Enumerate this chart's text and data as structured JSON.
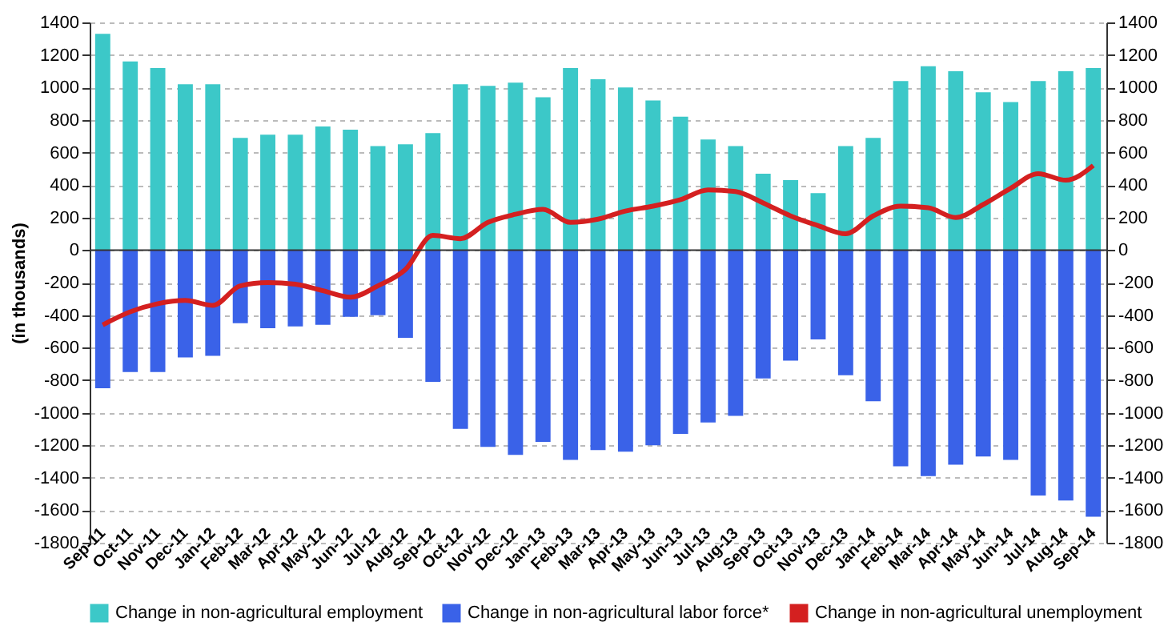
{
  "chart_data": {
    "type": "bar",
    "ylabel": "(in thousands)",
    "categories": [
      "Sep-11",
      "Oct-11",
      "Nov-11",
      "Dec-11",
      "Jan-12",
      "Feb-12",
      "Mar-12",
      "Apr-12",
      "May-12",
      "Jun-12",
      "Jul-12",
      "Aug-12",
      "Sep-12",
      "Oct-12",
      "Nov-12",
      "Dec-12",
      "Jan-13",
      "Feb-13",
      "Mar-13",
      "Apr-13",
      "May-13",
      "Jun-13",
      "Jul-13",
      "Aug-13",
      "Sep-13",
      "Oct-13",
      "Nov-13",
      "Dec-13",
      "Jan-14",
      "Feb-14",
      "Mar-14",
      "Apr-14",
      "May-14",
      "Jun-14",
      "Jul-14",
      "Aug-14",
      "Sep-14"
    ],
    "series": [
      {
        "name": "Change in non-agricultural employment",
        "color": "#3cc8c8",
        "values": [
          1330,
          1160,
          1120,
          1020,
          1020,
          690,
          710,
          710,
          760,
          740,
          640,
          650,
          720,
          1020,
          1010,
          1030,
          940,
          1120,
          1050,
          1000,
          920,
          820,
          680,
          640,
          470,
          430,
          350,
          640,
          690,
          1040,
          1130,
          1100,
          970,
          910,
          1040,
          1100,
          1120
        ]
      },
      {
        "name": "Change in non-agricultural labor force*",
        "color": "#3a62e8",
        "values": [
          -850,
          -750,
          -750,
          -660,
          -650,
          -450,
          -480,
          -470,
          -460,
          -410,
          -400,
          -540,
          -810,
          -1100,
          -1210,
          -1260,
          -1180,
          -1290,
          -1230,
          -1240,
          -1200,
          -1130,
          -1060,
          -1020,
          -790,
          -680,
          -550,
          -770,
          -930,
          -1330,
          -1390,
          -1320,
          -1270,
          -1290,
          -1510,
          -1540,
          -1640
        ]
      },
      {
        "name": "Change in non-agricultural unemployment",
        "type": "line",
        "color": "#d42020",
        "values": [
          -460,
          -380,
          -330,
          -310,
          -340,
          -220,
          -200,
          -210,
          -250,
          -290,
          -220,
          -120,
          90,
          70,
          170,
          220,
          250,
          170,
          190,
          240,
          270,
          310,
          370,
          360,
          290,
          210,
          150,
          100,
          210,
          270,
          260,
          200,
          280,
          380,
          470,
          430,
          520
        ]
      }
    ],
    "ylim": [
      -1800,
      1400
    ],
    "yticks": [
      -1800,
      -1600,
      -1400,
      -1200,
      -1000,
      -800,
      -600,
      -400,
      -200,
      0,
      200,
      400,
      600,
      800,
      1000,
      1200,
      1400
    ],
    "y2lim": [
      -1800,
      1400
    ],
    "y2ticks": [
      -1800,
      -1600,
      -1400,
      -1200,
      -1000,
      -800,
      -600,
      -400,
      -200,
      0,
      200,
      400,
      600,
      800,
      1000,
      1200,
      1400
    ],
    "stacked": true,
    "grid": "y",
    "legend": "bottom",
    "line_style": "solid",
    "marker": "none"
  }
}
